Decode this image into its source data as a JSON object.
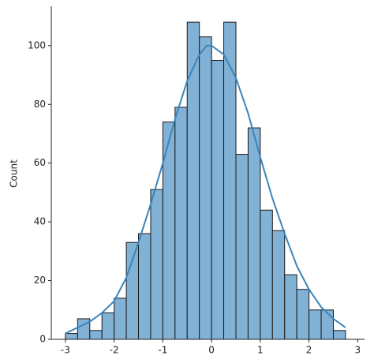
{
  "chart_data": {
    "type": "histogram",
    "ylabel": "Count",
    "bins": [
      -3.0,
      -2.75,
      -2.5,
      -2.25,
      -2.0,
      -1.75,
      -1.5,
      -1.25,
      -1.0,
      -0.75,
      -0.5,
      -0.25,
      0.0,
      0.25,
      0.5,
      0.75,
      1.0,
      1.25,
      1.5,
      1.75,
      2.0,
      2.25,
      2.5,
      2.75
    ],
    "values": [
      2,
      7,
      3,
      9,
      14,
      33,
      36,
      51,
      74,
      79,
      108,
      103,
      95,
      108,
      63,
      72,
      44,
      37,
      22,
      17,
      10,
      10,
      3
    ],
    "color": "#82b1d6",
    "edgecolor": "#1a1a1a",
    "kde": {
      "x": [
        -3.0,
        -2.75,
        -2.5,
        -2.25,
        -2.0,
        -1.75,
        -1.5,
        -1.25,
        -1.0,
        -0.75,
        -0.5,
        -0.25,
        -0.1,
        0.0,
        0.25,
        0.5,
        0.75,
        1.0,
        1.25,
        1.5,
        1.75,
        2.0,
        2.25,
        2.5,
        2.75
      ],
      "values": [
        2,
        4,
        6,
        9,
        13,
        21,
        33,
        46,
        60,
        75,
        88,
        97,
        100,
        100,
        97,
        89,
        77,
        62,
        48,
        36,
        25,
        17,
        11,
        7,
        4
      ],
      "color": "#3a85bb"
    },
    "xlim": [
      -3.29,
      3.14
    ],
    "ylim": [
      0,
      113.4
    ],
    "xticks": [
      -3,
      -2,
      -1,
      0,
      1,
      2,
      3
    ],
    "yticks": [
      0,
      20,
      40,
      60,
      80,
      100
    ]
  }
}
